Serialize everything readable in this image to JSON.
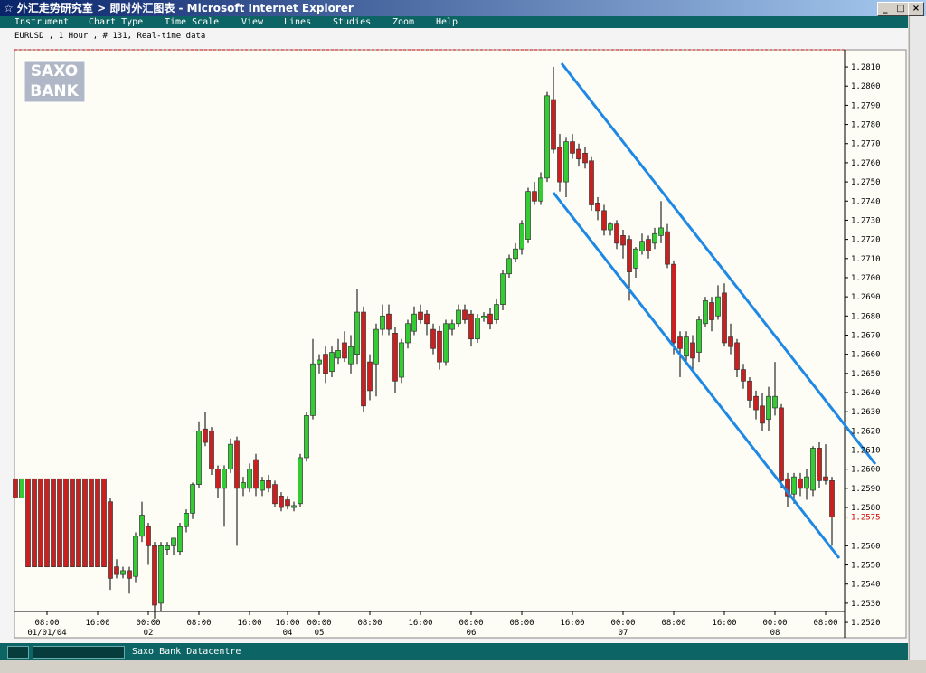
{
  "window": {
    "title": "☆ 外汇走势研究室 > 即时外汇图表 - Microsoft Internet Explorer"
  },
  "menu": [
    "Instrument",
    "Chart Type",
    "Time Scale",
    "View",
    "Lines",
    "Studies",
    "Zoom",
    "Help"
  ],
  "info": "EURUSD , 1 Hour , # 131, Real-time data",
  "logo": [
    "SAXO",
    "BANK"
  ],
  "status": "Saxo Bank Datacentre",
  "chart_data": {
    "type": "candlestick",
    "categories": [
      null,
      null,
      null,
      null,
      null,
      "08:00",
      null,
      null,
      null,
      null,
      null,
      null,
      null,
      "16:00",
      null,
      null,
      null,
      null,
      null,
      null,
      null,
      "00:00",
      null,
      null,
      null,
      null,
      null,
      null,
      null,
      "08:00",
      null,
      null,
      null,
      null,
      null,
      null,
      null,
      "16:00",
      null,
      null,
      null,
      null,
      null,
      "16:00",
      null,
      null,
      null,
      null,
      "00:00",
      null,
      null,
      null,
      null,
      null,
      null,
      null,
      "08:00",
      null,
      null,
      null,
      null,
      null,
      null,
      null,
      "16:00",
      null,
      null,
      null,
      null,
      null,
      null,
      null,
      "00:00",
      null,
      null,
      null,
      null,
      null,
      null,
      null,
      "08:00",
      null,
      null,
      null,
      null,
      null,
      null,
      null,
      "16:00",
      null,
      null,
      null,
      null,
      null,
      null,
      null,
      "00:00",
      null,
      null,
      null,
      null,
      null,
      null,
      null,
      "08:00",
      null,
      null,
      null,
      null,
      null,
      null,
      null,
      "16:00",
      null,
      null,
      null,
      null,
      null,
      null,
      null,
      "00:00",
      null,
      null,
      null,
      null,
      null,
      null,
      null,
      "08:00",
      null
    ],
    "dates": [
      null,
      null,
      null,
      null,
      null,
      "01/01/04",
      null,
      null,
      null,
      null,
      null,
      null,
      null,
      null,
      null,
      null,
      null,
      null,
      null,
      null,
      null,
      "02",
      null,
      null,
      null,
      null,
      null,
      null,
      null,
      null,
      null,
      null,
      null,
      null,
      null,
      null,
      null,
      null,
      null,
      null,
      null,
      null,
      null,
      "04",
      null,
      null,
      null,
      null,
      "05",
      null,
      null,
      null,
      null,
      null,
      null,
      null,
      null,
      null,
      null,
      null,
      null,
      null,
      null,
      null,
      null,
      null,
      null,
      null,
      null,
      null,
      null,
      null,
      "06",
      null,
      null,
      null,
      null,
      null,
      null,
      null,
      null,
      null,
      null,
      null,
      null,
      null,
      null,
      null,
      null,
      null,
      null,
      null,
      null,
      null,
      null,
      null,
      "07",
      null,
      null,
      null,
      null,
      null,
      null,
      null,
      null,
      null,
      null,
      null,
      null,
      null,
      null,
      null,
      null,
      null,
      null,
      null,
      null,
      null,
      null,
      null,
      "08",
      null,
      null,
      null,
      null,
      null,
      null,
      null,
      null,
      null
    ],
    "open": [
      1.2595,
      1.2585,
      1.2595,
      1.2595,
      1.2595,
      1.2595,
      1.2595,
      1.2595,
      1.2595,
      1.2595,
      1.2595,
      1.2595,
      1.2595,
      1.2595,
      1.2595,
      1.2583,
      1.2549,
      1.2545,
      1.2547,
      1.2544,
      1.2565,
      1.257,
      1.256,
      1.253,
      1.2558,
      1.256,
      1.2557,
      1.257,
      1.2577,
      1.2592,
      1.2621,
      1.262,
      1.26,
      1.259,
      1.26,
      1.2615,
      1.259,
      1.259,
      1.2605,
      1.2589,
      1.2594,
      1.2592,
      1.2586,
      1.2584,
      1.258,
      1.2582,
      1.2606,
      1.2628,
      1.2655,
      1.266,
      1.2651,
      1.2658,
      1.2666,
      1.2655,
      1.266,
      1.2682,
      1.2656,
      1.2655,
      1.2673,
      1.2681,
      1.2671,
      1.2648,
      1.2666,
      1.2672,
      1.2682,
      1.2681,
      1.2673,
      1.2672,
      1.2656,
      1.2673,
      1.2676,
      1.2683,
      1.2681,
      1.2668,
      1.2679,
      1.2681,
      1.2678,
      1.2686,
      1.2702,
      1.271,
      1.2715,
      1.272,
      1.2745,
      1.274,
      1.2752,
      1.2793,
      1.2768,
      1.275,
      1.2771,
      1.2767,
      1.2765,
      1.2761,
      1.2739,
      1.2735,
      1.2725,
      1.2728,
      1.2722,
      1.272,
      1.2705,
      1.2714,
      1.272,
      1.2718,
      1.2722,
      1.2724,
      1.2707,
      1.2669,
      1.2659,
      1.2666,
      1.2661,
      1.2676,
      1.2687,
      1.268,
      1.2692,
      1.2669,
      1.2666,
      1.2652,
      1.2646,
      1.2638,
      1.2633,
      1.2626,
      1.2632,
      1.2632,
      1.2595,
      1.2587,
      1.2595,
      1.259,
      1.2589,
      1.2611,
      1.2596,
      1.2594
    ],
    "high": [
      1.2595,
      1.2595,
      1.2595,
      1.2595,
      1.2595,
      1.2595,
      1.2595,
      1.2595,
      1.2595,
      1.2595,
      1.2595,
      1.2595,
      1.2595,
      1.2595,
      1.2595,
      1.2585,
      1.2553,
      1.2549,
      1.2549,
      1.2567,
      1.2583,
      1.2572,
      1.2562,
      1.2562,
      1.2562,
      1.2564,
      1.2572,
      1.2579,
      1.2593,
      1.2625,
      1.263,
      1.2622,
      1.2602,
      1.2602,
      1.2616,
      1.2617,
      1.2596,
      1.2603,
      1.2608,
      1.2596,
      1.2597,
      1.2594,
      1.2588,
      1.2586,
      1.2583,
      1.2608,
      1.263,
      1.2668,
      1.266,
      1.2664,
      1.2664,
      1.2668,
      1.2672,
      1.267,
      1.2694,
      1.2685,
      1.266,
      1.2676,
      1.2686,
      1.2686,
      1.2674,
      1.2668,
      1.2678,
      1.2685,
      1.2686,
      1.2683,
      1.2676,
      1.2675,
      1.2678,
      1.2678,
      1.2686,
      1.2686,
      1.2683,
      1.2681,
      1.2682,
      1.2684,
      1.2689,
      1.2704,
      1.2712,
      1.2718,
      1.273,
      1.2747,
      1.275,
      1.2755,
      1.2797,
      1.281,
      1.2775,
      1.2773,
      1.2775,
      1.277,
      1.2768,
      1.2763,
      1.2742,
      1.2738,
      1.2729,
      1.273,
      1.2725,
      1.2722,
      1.2716,
      1.2723,
      1.2722,
      1.2726,
      1.274,
      1.2728,
      1.2709,
      1.2672,
      1.2672,
      1.267,
      1.268,
      1.269,
      1.269,
      1.2696,
      1.2697,
      1.2676,
      1.2668,
      1.2655,
      1.2648,
      1.2641,
      1.264,
      1.2643,
      1.2656,
      1.2634,
      1.2598,
      1.2598,
      1.2598,
      1.26,
      1.2612,
      1.2614,
      1.2613,
      1.2596
    ],
    "low": [
      1.2585,
      1.2585,
      1.2549,
      1.2549,
      1.2549,
      1.2549,
      1.2549,
      1.2549,
      1.2549,
      1.2549,
      1.2549,
      1.2549,
      1.2549,
      1.2549,
      1.2549,
      1.2537,
      1.2543,
      1.2543,
      1.2535,
      1.2541,
      1.2562,
      1.255,
      1.2522,
      1.2526,
      1.2555,
      1.2555,
      1.2555,
      1.2567,
      1.2574,
      1.259,
      1.2612,
      1.2597,
      1.2585,
      1.257,
      1.2598,
      1.256,
      1.2586,
      1.2588,
      1.2586,
      1.2586,
      1.2588,
      1.258,
      1.2578,
      1.2579,
      1.2578,
      1.258,
      1.2604,
      1.2626,
      1.265,
      1.2645,
      1.2648,
      1.2655,
      1.2656,
      1.265,
      1.2655,
      1.263,
      1.2636,
      1.2638,
      1.267,
      1.267,
      1.264,
      1.2645,
      1.2663,
      1.267,
      1.2676,
      1.267,
      1.266,
      1.2652,
      1.2654,
      1.267,
      1.2674,
      1.2676,
      1.2664,
      1.2666,
      1.2677,
      1.2673,
      1.2676,
      1.2683,
      1.27,
      1.2708,
      1.2712,
      1.2718,
      1.2738,
      1.2738,
      1.275,
      1.2765,
      1.2745,
      1.2742,
      1.2762,
      1.2758,
      1.2757,
      1.2735,
      1.273,
      1.2722,
      1.2722,
      1.2715,
      1.271,
      1.2688,
      1.27,
      1.2712,
      1.271,
      1.2715,
      1.2718,
      1.2705,
      1.266,
      1.2648,
      1.2655,
      1.2652,
      1.2656,
      1.2674,
      1.2672,
      1.2678,
      1.2664,
      1.266,
      1.2648,
      1.2642,
      1.2632,
      1.2626,
      1.262,
      1.262,
      1.2628,
      1.259,
      1.258,
      1.2582,
      1.2586,
      1.2584,
      1.2586,
      1.259,
      1.2592,
      1.256
    ],
    "close": [
      1.2585,
      1.2595,
      1.2549,
      1.2549,
      1.2549,
      1.2549,
      1.2549,
      1.2549,
      1.2549,
      1.2549,
      1.2549,
      1.2549,
      1.2549,
      1.2549,
      1.2549,
      1.2543,
      1.2545,
      1.2547,
      1.2543,
      1.2565,
      1.2576,
      1.256,
      1.2529,
      1.256,
      1.256,
      1.2564,
      1.257,
      1.2577,
      1.2592,
      1.262,
      1.2614,
      1.26,
      1.259,
      1.26,
      1.2613,
      1.259,
      1.2593,
      1.26,
      1.259,
      1.2594,
      1.259,
      1.2582,
      1.258,
      1.2581,
      1.2581,
      1.2606,
      1.2628,
      1.2655,
      1.2657,
      1.265,
      1.2661,
      1.2662,
      1.2658,
      1.2664,
      1.2682,
      1.2633,
      1.2641,
      1.2673,
      1.268,
      1.2673,
      1.2646,
      1.2666,
      1.2676,
      1.2681,
      1.2678,
      1.2676,
      1.2663,
      1.2656,
      1.2676,
      1.2676,
      1.2683,
      1.2678,
      1.2668,
      1.2679,
      1.268,
      1.2676,
      1.2686,
      1.2702,
      1.271,
      1.2715,
      1.2728,
      1.2745,
      1.274,
      1.2752,
      1.2795,
      1.2767,
      1.275,
      1.2771,
      1.2765,
      1.2762,
      1.276,
      1.2738,
      1.2735,
      1.2725,
      1.2728,
      1.2718,
      1.2717,
      1.2703,
      1.2715,
      1.2719,
      1.2714,
      1.2723,
      1.2726,
      1.2707,
      1.2666,
      1.2663,
      1.2669,
      1.2658,
      1.2678,
      1.2688,
      1.2678,
      1.269,
      1.2666,
      1.2664,
      1.2652,
      1.2646,
      1.2636,
      1.2631,
      1.2624,
      1.2638,
      1.2638,
      1.2594,
      1.2586,
      1.2596,
      1.259,
      1.2596,
      1.2611,
      1.2594,
      1.2594,
      1.2575
    ],
    "up_color": "#33cc33",
    "down_color": "#cc2020",
    "ylim": [
      1.2512,
      1.2819
    ],
    "yticks": [
      {
        "value": 1.252,
        "label": "1.2520"
      },
      {
        "value": 1.253,
        "label": "1.2530"
      },
      {
        "value": 1.254,
        "label": "1.2540"
      },
      {
        "value": 1.255,
        "label": "1.2550"
      },
      {
        "value": 1.256,
        "label": "1.2560"
      },
      {
        "value": 1.258,
        "label": "1.2580"
      },
      {
        "value": 1.259,
        "label": "1.2590"
      },
      {
        "value": 1.26,
        "label": "1.2600"
      },
      {
        "value": 1.261,
        "label": "1.2610"
      },
      {
        "value": 1.262,
        "label": "1.2620"
      },
      {
        "value": 1.263,
        "label": "1.2630"
      },
      {
        "value": 1.264,
        "label": "1.2640"
      },
      {
        "value": 1.265,
        "label": "1.2650"
      },
      {
        "value": 1.266,
        "label": "1.2660"
      },
      {
        "value": 1.267,
        "label": "1.2670"
      },
      {
        "value": 1.268,
        "label": "1.2680"
      },
      {
        "value": 1.269,
        "label": "1.2690"
      },
      {
        "value": 1.27,
        "label": "1.2700"
      },
      {
        "value": 1.271,
        "label": "1.2710"
      },
      {
        "value": 1.272,
        "label": "1.2720"
      },
      {
        "value": 1.273,
        "label": "1.2730"
      },
      {
        "value": 1.274,
        "label": "1.2740"
      },
      {
        "value": 1.275,
        "label": "1.2750"
      },
      {
        "value": 1.276,
        "label": "1.2760"
      },
      {
        "value": 1.277,
        "label": "1.2770"
      },
      {
        "value": 1.278,
        "label": "1.2780"
      },
      {
        "value": 1.279,
        "label": "1.2790"
      },
      {
        "value": 1.28,
        "label": "1.2800"
      },
      {
        "value": 1.281,
        "label": "1.2810"
      }
    ],
    "last_price": {
      "value": 1.2575,
      "label": "1.2575"
    },
    "last_price_color": "#cc0000"
  }
}
